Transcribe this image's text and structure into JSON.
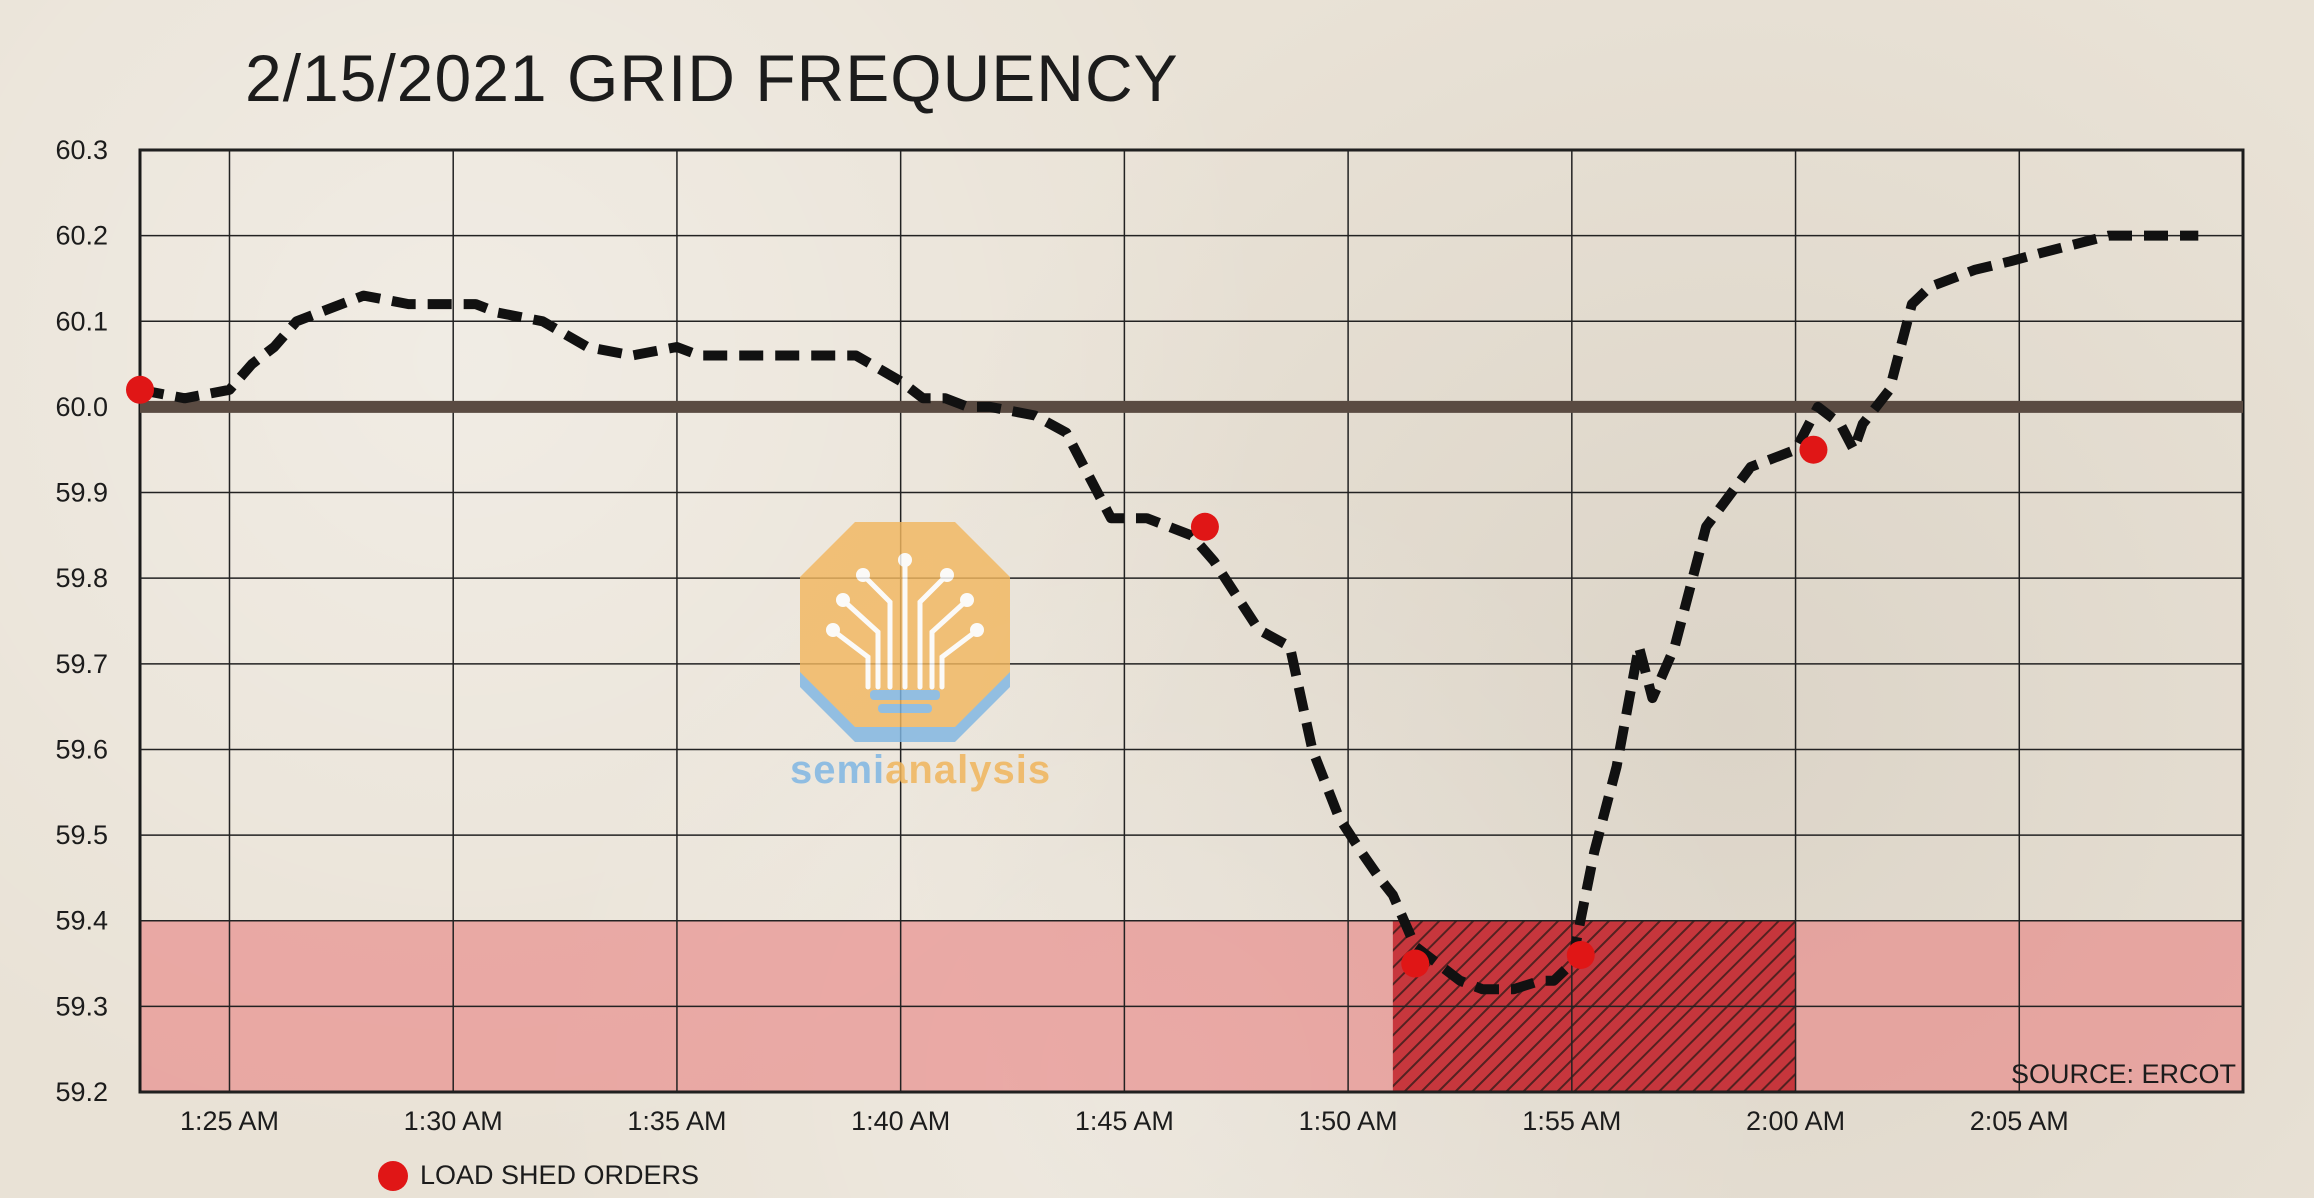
{
  "chart_data": {
    "type": "line",
    "title": "2/15/2021 GRID FREQUENCY",
    "xlabel": "",
    "ylabel": "",
    "ylim": [
      59.2,
      60.3
    ],
    "xlim_minutes": [
      -2,
      45
    ],
    "y_ticks": [
      "60.3",
      "60.2",
      "60.1",
      "60.0",
      "59.9",
      "59.8",
      "59.7",
      "59.6",
      "59.5",
      "59.4",
      "59.3",
      "59.2"
    ],
    "x_ticks": [
      {
        "minute": 0,
        "label": "1:25 AM"
      },
      {
        "minute": 5,
        "label": "1:30 AM"
      },
      {
        "minute": 10,
        "label": "1:35 AM"
      },
      {
        "minute": 15,
        "label": "1:40 AM"
      },
      {
        "minute": 20,
        "label": "1:45 AM"
      },
      {
        "minute": 25,
        "label": "1:50 AM"
      },
      {
        "minute": 30,
        "label": "1:55 AM"
      },
      {
        "minute": 35,
        "label": "2:00 AM"
      },
      {
        "minute": 40,
        "label": "2:05 AM"
      }
    ],
    "grid": true,
    "reference_line": {
      "y": 60.0,
      "color": "#5a4b42"
    },
    "danger_zone": {
      "y_from": 59.2,
      "y_to": 59.4,
      "color": "#e88080"
    },
    "hatched_zone": {
      "x_from_minute": 26,
      "x_to_minute": 35,
      "y_from": 59.2,
      "y_to": 59.4,
      "color": "#b9151b"
    },
    "series": [
      {
        "color": "#111111",
        "x": [
          -2,
          -1,
          0,
          0.5,
          1,
          1.5,
          2,
          3,
          4,
          5,
          5.5,
          6,
          7,
          8,
          9,
          10,
          10.5,
          11,
          12,
          13,
          14,
          15,
          15.5,
          16,
          16.5,
          17,
          18,
          18.7,
          19,
          19.7,
          20.5,
          21,
          21.5,
          22,
          23,
          23.7,
          24.2,
          24.8,
          25.3,
          25.7,
          26,
          26.5,
          27,
          27.5,
          28,
          28.7,
          29.3,
          29.6,
          30,
          30.5,
          31,
          31.5,
          31.8,
          32.3,
          33,
          34,
          35,
          35.5,
          36,
          36.3,
          36.5,
          36.8,
          37.1,
          37.6,
          38,
          38.5,
          39,
          39.8,
          40.5,
          42,
          44
        ],
        "y": [
          60.02,
          60.01,
          60.02,
          60.05,
          60.07,
          60.1,
          60.11,
          60.13,
          60.12,
          60.12,
          60.12,
          60.11,
          60.1,
          60.07,
          60.06,
          60.07,
          60.06,
          60.06,
          60.06,
          60.06,
          60.06,
          60.03,
          60.01,
          60.01,
          60.0,
          60.0,
          59.99,
          59.97,
          59.94,
          59.87,
          59.87,
          59.86,
          59.85,
          59.82,
          59.74,
          59.72,
          59.6,
          59.52,
          59.48,
          59.45,
          59.43,
          59.37,
          59.35,
          59.33,
          59.32,
          59.32,
          59.33,
          59.33,
          59.35,
          59.48,
          59.58,
          59.72,
          59.66,
          59.72,
          59.86,
          59.93,
          59.95,
          60.0,
          59.98,
          59.95,
          59.98,
          60.0,
          60.02,
          60.12,
          60.14,
          60.15,
          60.16,
          60.17,
          60.18,
          60.2,
          60.2
        ]
      }
    ],
    "markers": {
      "name": "LOAD SHED ORDERS",
      "color": "#e01616",
      "points": [
        {
          "x": -2,
          "y": 60.02
        },
        {
          "x": 21.8,
          "y": 59.86
        },
        {
          "x": 26.5,
          "y": 59.35
        },
        {
          "x": 30.2,
          "y": 59.36
        },
        {
          "x": 35.4,
          "y": 59.95
        }
      ]
    },
    "annotations": [
      "SOURCE: ERCOT"
    ],
    "legend_position": "bottom-left"
  },
  "watermark": {
    "text_part1": "semi",
    "text_part2": "analysis",
    "icon": "lightbulb-circuit-logo"
  }
}
